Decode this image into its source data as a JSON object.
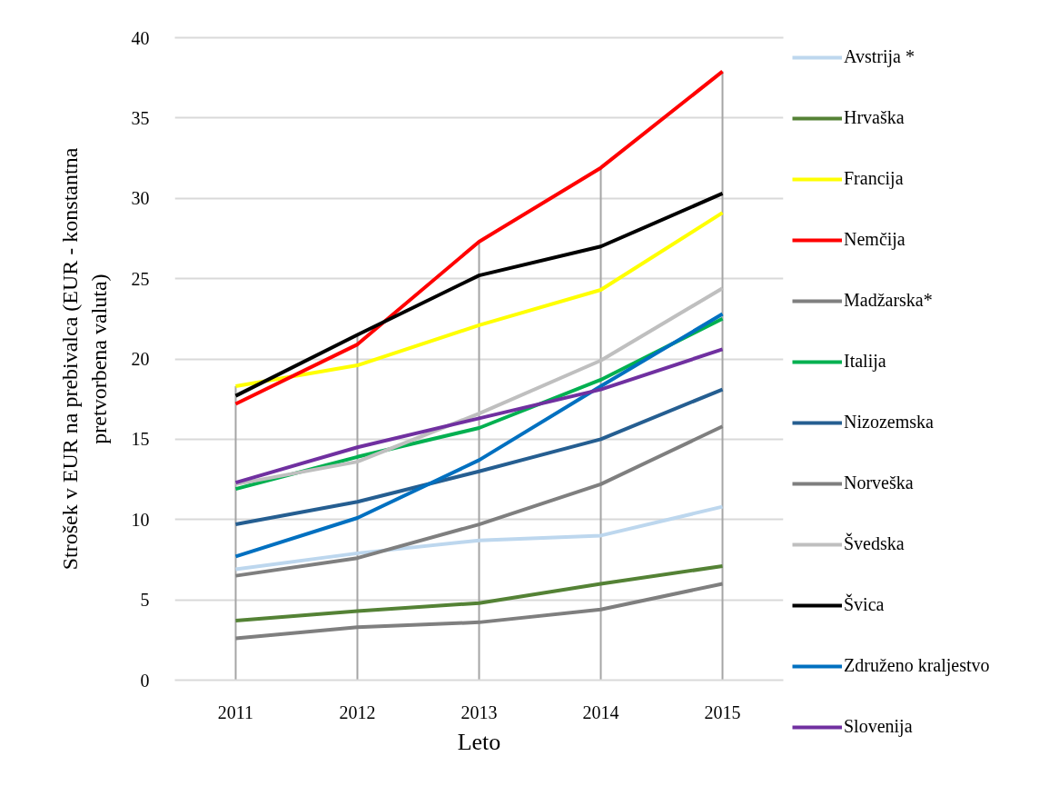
{
  "chart_data": {
    "type": "line",
    "xlabel": "Leto",
    "ylabel": "Strošek v EUR na prebivalca (EUR - konstantna pretvorbena valuta)",
    "categories": [
      "2011",
      "2012",
      "2013",
      "2014",
      "2015"
    ],
    "ylim": [
      0,
      40
    ],
    "yticks": [
      0,
      5,
      10,
      15,
      20,
      25,
      30,
      35,
      40
    ],
    "grid": "y",
    "legend": "right",
    "ref_lines": [
      {
        "axis": "x",
        "value": "2011",
        "color": "#a5a5a5"
      },
      {
        "axis": "x",
        "value": "2012",
        "color": "#a5a5a5"
      },
      {
        "axis": "x",
        "value": "2013",
        "color": "#a5a5a5"
      },
      {
        "axis": "x",
        "value": "2014",
        "color": "#a5a5a5"
      },
      {
        "axis": "x",
        "value": "2015",
        "color": "#a5a5a5"
      }
    ],
    "series": [
      {
        "name": "Avstrija *",
        "color": "#bdd7ee",
        "values": [
          6.9,
          7.9,
          8.7,
          9.0,
          10.8
        ]
      },
      {
        "name": "Hrvaška",
        "color": "#548235",
        "values": [
          3.7,
          4.3,
          4.8,
          6.0,
          7.1
        ]
      },
      {
        "name": "Francija",
        "color": "#ffff00",
        "values": [
          18.3,
          19.6,
          22.1,
          24.3,
          29.1
        ]
      },
      {
        "name": "Nemčija",
        "color": "#ff0000",
        "values": [
          17.2,
          20.9,
          27.3,
          31.9,
          37.9
        ]
      },
      {
        "name": "Madžarska*",
        "color": "#7f7f7f",
        "values": [
          2.6,
          3.3,
          3.6,
          4.4,
          6.0
        ]
      },
      {
        "name": "Italija",
        "color": "#00b050",
        "values": [
          11.9,
          13.9,
          15.7,
          18.7,
          22.5
        ]
      },
      {
        "name": "Nizozemska",
        "color": "#255e91",
        "values": [
          9.7,
          11.1,
          13.0,
          15.0,
          18.1
        ]
      },
      {
        "name": "Norveška",
        "color": "#7f7f7f",
        "values": [
          6.5,
          7.6,
          9.7,
          12.2,
          15.8
        ]
      },
      {
        "name": "Švedska",
        "color": "#bfbfbf",
        "values": [
          12.2,
          13.6,
          16.6,
          19.9,
          24.4
        ]
      },
      {
        "name": "Švica",
        "color": "#000000",
        "values": [
          17.7,
          21.5,
          25.2,
          27.0,
          30.3
        ]
      },
      {
        "name": "Združeno kraljestvo",
        "color": "#0070c0",
        "values": [
          7.7,
          10.1,
          13.7,
          18.3,
          22.8
        ]
      },
      {
        "name": "Slovenija",
        "color": "#7030a0",
        "values": [
          12.3,
          14.5,
          16.3,
          18.1,
          20.6
        ]
      }
    ]
  }
}
